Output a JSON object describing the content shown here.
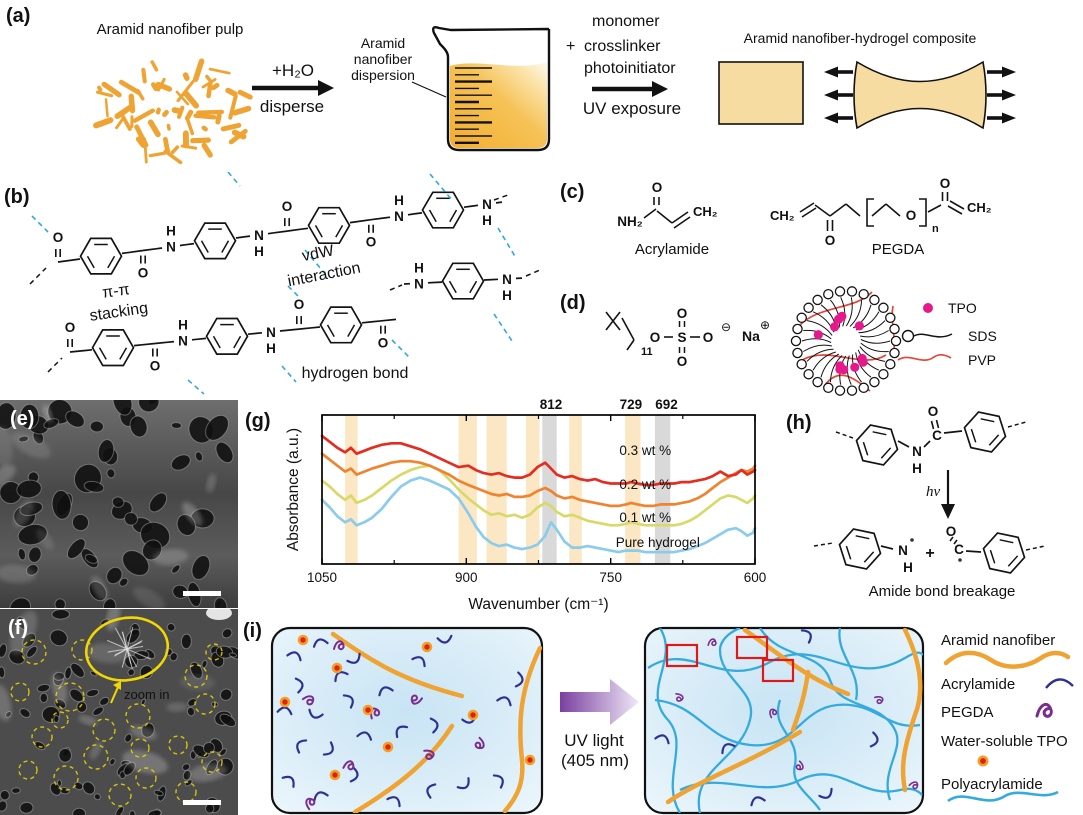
{
  "panels": {
    "a": "(a)",
    "b": "(b)",
    "c": "(c)",
    "d": "(d)",
    "e": "(e)",
    "f": "(f)",
    "g": "(g)",
    "h": "(h)",
    "i": "(i)"
  },
  "panel_a": {
    "pulp_label": "Aramid nanofiber pulp",
    "arrow1_above": "+H₂O",
    "arrow1_below": "disperse",
    "dispersion_lines": [
      "Aramid",
      "nanofiber",
      "dispersion"
    ],
    "reagent_plus": "+",
    "reagent_lines": [
      "monomer",
      "crosslinker",
      "photoinitiator"
    ],
    "arrow2_below": "UV exposure",
    "composite_label": "Aramid nanofiber-hydrogel composite"
  },
  "panel_b": {
    "pi_line1": "π-π",
    "pi_line2": "stacking",
    "vdw_line1": "vdW",
    "vdw_line2": "interaction",
    "hbond": "hydrogen bond"
  },
  "panel_c": {
    "acrylamide": "Acrylamide",
    "pegda": "PEGDA"
  },
  "panel_d": {
    "legend": [
      {
        "label": "TPO",
        "symbol": "tpo-magenta-dot"
      },
      {
        "label": "SDS",
        "symbol": "sds-circle-tail"
      },
      {
        "label": "PVP",
        "symbol": "pvp-red-wave"
      }
    ]
  },
  "panel_f_annot": {
    "zoom_label": "zoom in"
  },
  "panel_h": {
    "hv": "hν",
    "plus": "+",
    "caption": "Amide bond breakage"
  },
  "panel_i": {
    "uv_label_lines": [
      "UV light",
      "(405 nm)"
    ],
    "legend": [
      {
        "label": "Aramid nanofiber",
        "symbol": "orange-fiber-wave"
      },
      {
        "label": "Acrylamide",
        "symbol": "navy-arc"
      },
      {
        "label": "PEGDA",
        "symbol": "purple-squiggle"
      },
      {
        "label": "Water-soluble TPO",
        "symbol": "red-orange-dot"
      },
      {
        "label": "Polyacrylamide",
        "symbol": "blue-wave"
      }
    ]
  },
  "chem": {
    "N": "N",
    "H": "H",
    "C": "C",
    "O": "O",
    "S": "S",
    "Na": "Na",
    "NH2": "NH₂",
    "CH2": "CH₂",
    "sub_11": "11",
    "sub_n": "n",
    "charge_minus": "⊖",
    "charge_plus": "⊕"
  },
  "colors": {
    "outline": "#141414",
    "aramid_orange": "#efa333",
    "hydrogel_tan": "#f7dca2",
    "beaker_liquid": "#f5b93e",
    "nh_blue": "#33589e",
    "o_red": "#e8202c",
    "s_yellow": "#bfa014",
    "na_purple": "#8b6ab8",
    "purple_label": "#8a3f9b",
    "hbond_cyan": "#2fa9dd",
    "magenta_tpo": "#e6198c",
    "pvp_red": "#e64438",
    "navy_peak": "#2a4a8c",
    "acrylamide_navy": "#2e3192",
    "pegda_purple": "#7b2d8e",
    "poly_blue": "#35abdd",
    "tpo_core": "#e02010",
    "tpo_ring": "#f0a028",
    "uv_purple": "#7b3fa0",
    "red_box": "#e01818",
    "annot_yellow": "#f0d800",
    "band_orange": "#fbe7c3",
    "band_gray": "#d9d9d9"
  },
  "chart_data": {
    "type": "line",
    "title": "",
    "xlabel": "Wavenumber (cm⁻¹)",
    "ylabel": "Absorbance (a.u.)",
    "x_range": [
      1050,
      600
    ],
    "x_ticks": [
      1050,
      900,
      750,
      600
    ],
    "x_minor_ticks": [
      975,
      825,
      675
    ],
    "grid": false,
    "y_note": "stacked offset spectra, arbitrary units 0-100 of plot height",
    "peak_labels": [
      812,
      729,
      692
    ],
    "highlight_bands": {
      "orange": [
        [
          1026,
          1013
        ],
        [
          908,
          889
        ],
        [
          879,
          858
        ],
        [
          838,
          824
        ],
        [
          793,
          780
        ],
        [
          735,
          719
        ]
      ],
      "gray": [
        [
          821,
          806
        ],
        [
          704,
          688
        ]
      ]
    },
    "x": [
      1050,
      1042,
      1034,
      1026,
      1020,
      1014,
      1006,
      998,
      988,
      978,
      968,
      958,
      948,
      938,
      928,
      918,
      908,
      898,
      890,
      882,
      874,
      866,
      858,
      850,
      842,
      834,
      826,
      818,
      812,
      806,
      798,
      790,
      782,
      774,
      766,
      758,
      750,
      742,
      734,
      729,
      722,
      714,
      706,
      698,
      692,
      684,
      676,
      668,
      660,
      652,
      644,
      636,
      628,
      620,
      614,
      608,
      602,
      600
    ],
    "series": [
      {
        "name": "0.3 wt %",
        "color": "#e32d22",
        "label_pos": [
          714,
          76
        ],
        "y": [
          86,
          82,
          78,
          75,
          78,
          74,
          76,
          78,
          80,
          81,
          81,
          79,
          77,
          74,
          71,
          68,
          65,
          66,
          63,
          61,
          60,
          61,
          59,
          58,
          58,
          60,
          65,
          68,
          64,
          60,
          58,
          59,
          57,
          56,
          57,
          55,
          54,
          54,
          54,
          55,
          54,
          53,
          53,
          54,
          54,
          54,
          55,
          55,
          56,
          57,
          59,
          62,
          59,
          60,
          63,
          60,
          62,
          63
        ]
      },
      {
        "name": "0.2 wt %",
        "color": "#f08330",
        "label_pos": [
          714,
          53
        ],
        "y": [
          74,
          70,
          66,
          62,
          64,
          60,
          62,
          64,
          66,
          68,
          69,
          69,
          68,
          66,
          63,
          60,
          56,
          53,
          51,
          49,
          47,
          46,
          47,
          45,
          45,
          46,
          49,
          51,
          49,
          46,
          44,
          45,
          43,
          42,
          41,
          40,
          39,
          39,
          40,
          41,
          40,
          39,
          39,
          40,
          40,
          40,
          41,
          42,
          44,
          47,
          51,
          55,
          58,
          61,
          63,
          62,
          64,
          66
        ]
      },
      {
        "name": "0.1 wt %",
        "color": "#d9d969",
        "label_pos": [
          714,
          31
        ],
        "y": [
          56,
          52,
          47,
          43,
          46,
          41,
          43,
          46,
          51,
          56,
          60,
          63,
          65,
          66,
          63,
          57,
          50,
          44,
          40,
          36,
          33,
          34,
          32,
          33,
          31,
          33,
          38,
          41,
          39,
          35,
          32,
          33,
          31,
          29,
          28,
          27,
          26,
          26,
          27,
          28,
          27,
          26,
          26,
          26,
          26,
          26,
          27,
          29,
          32,
          36,
          40,
          44,
          46,
          45,
          43,
          41,
          44,
          46
        ]
      },
      {
        "name": "Pure hydrogel",
        "color": "#8bcbec",
        "label_pos": [
          701,
          14
        ],
        "y": [
          43,
          38,
          32,
          28,
          30,
          26,
          28,
          31,
          37,
          45,
          52,
          56,
          58,
          56,
          53,
          50,
          44,
          34,
          25,
          18,
          14,
          12,
          13,
          11,
          10,
          11,
          13,
          19,
          28,
          23,
          15,
          11,
          11,
          12,
          11,
          10,
          9,
          8,
          9,
          9,
          9,
          8,
          8,
          8,
          8,
          8,
          9,
          10,
          12,
          14,
          17,
          20,
          23,
          24,
          22,
          19,
          21,
          24
        ]
      }
    ]
  }
}
